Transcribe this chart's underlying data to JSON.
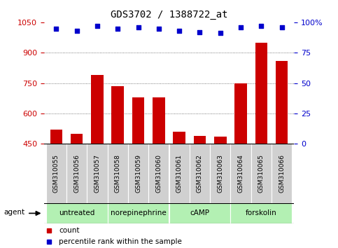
{
  "title": "GDS3702 / 1388722_at",
  "samples": [
    "GSM310055",
    "GSM310056",
    "GSM310057",
    "GSM310058",
    "GSM310059",
    "GSM310060",
    "GSM310061",
    "GSM310062",
    "GSM310063",
    "GSM310064",
    "GSM310065",
    "GSM310066"
  ],
  "counts": [
    520,
    500,
    790,
    735,
    680,
    680,
    510,
    490,
    485,
    750,
    950,
    860
  ],
  "percentiles": [
    95,
    93,
    97,
    95,
    96,
    95,
    93,
    92,
    91,
    96,
    97,
    96
  ],
  "ylim_left": [
    450,
    1050
  ],
  "ylim_right": [
    0,
    100
  ],
  "yticks_left": [
    450,
    600,
    750,
    900,
    1050
  ],
  "yticks_right": [
    0,
    25,
    50,
    75,
    100
  ],
  "bar_color": "#cc0000",
  "dot_color": "#0000cc",
  "bar_width": 0.6,
  "groups": [
    {
      "label": "untreated",
      "start": 0,
      "end": 3,
      "color": "#b3f0b3"
    },
    {
      "label": "norepinephrine",
      "start": 3,
      "end": 6,
      "color": "#b3f0b3"
    },
    {
      "label": "cAMP",
      "start": 6,
      "end": 9,
      "color": "#b3f0b3"
    },
    {
      "label": "forskolin",
      "start": 9,
      "end": 12,
      "color": "#b3f0b3"
    }
  ],
  "legend_count_label": "count",
  "legend_pct_label": "percentile rank within the sample",
  "agent_label": "agent",
  "bg_color": "#ffffff",
  "plot_bg_color": "#ffffff",
  "sample_box_color": "#d0d0d0",
  "grid_color": "#555555",
  "title_color": "#000000",
  "left_axis_color": "#cc0000",
  "right_axis_color": "#0000cc"
}
